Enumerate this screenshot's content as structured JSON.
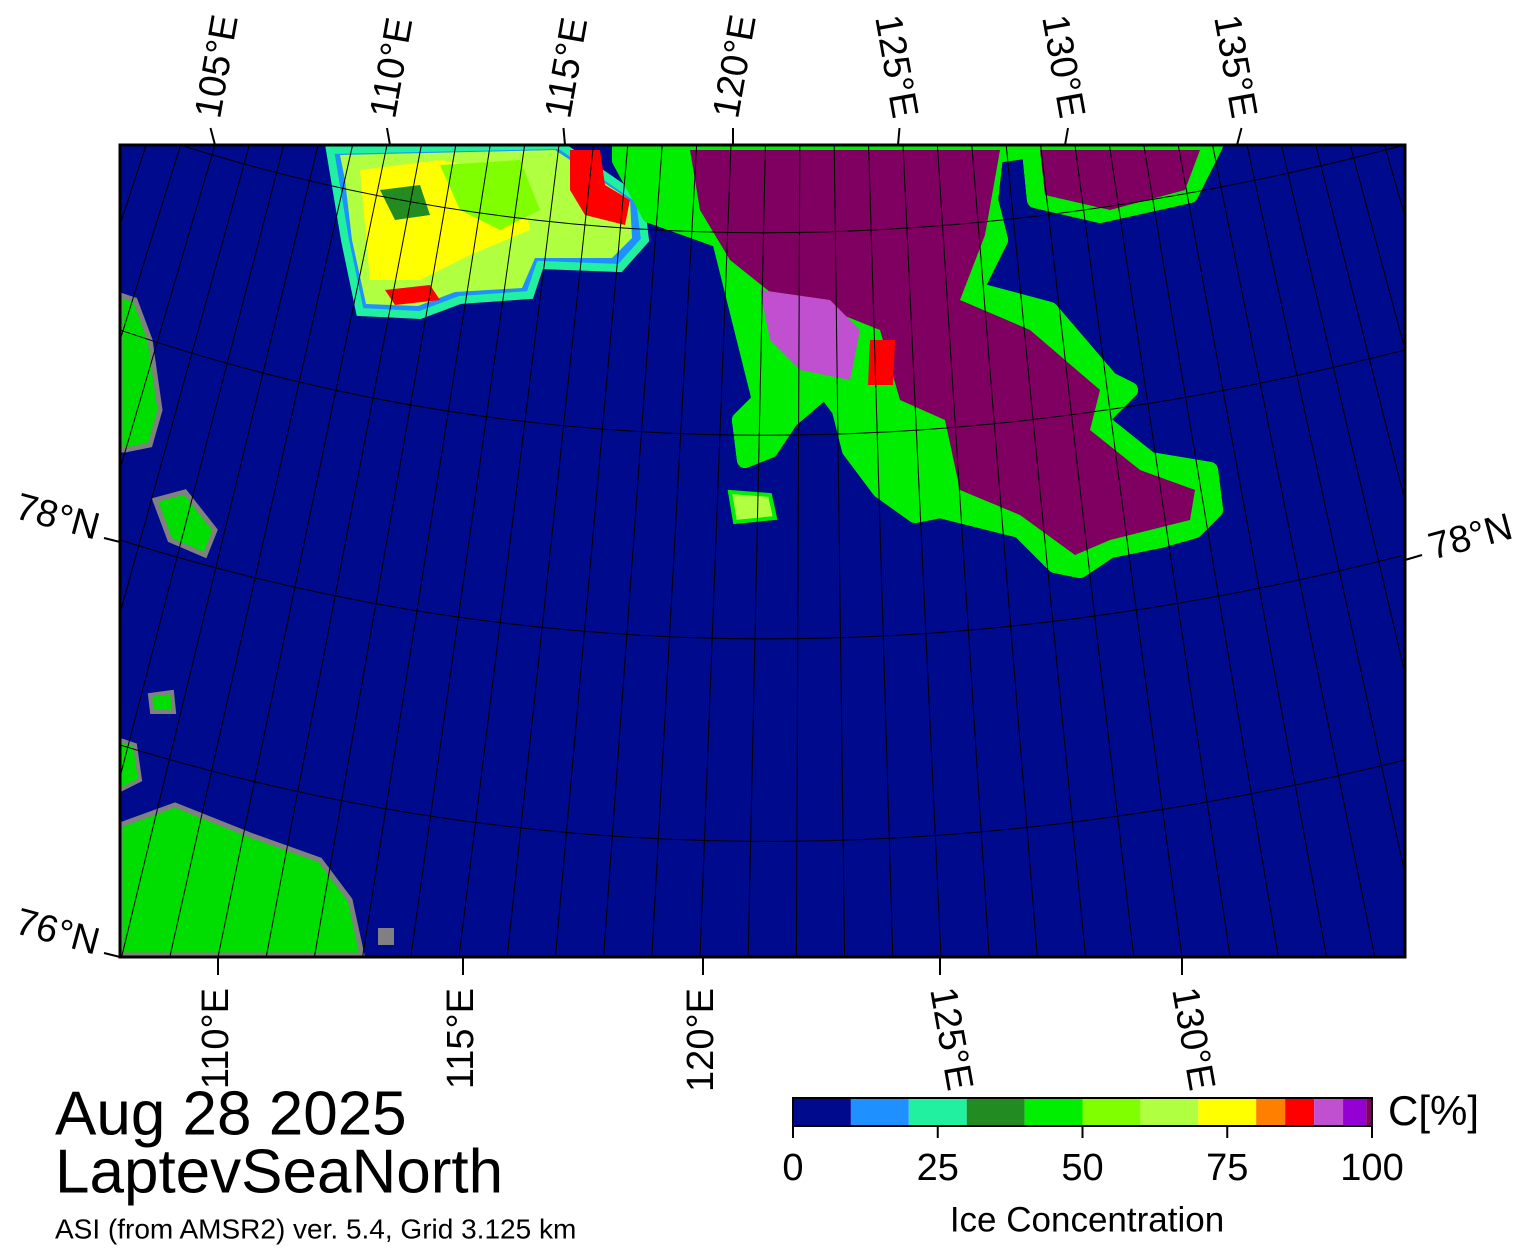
{
  "map": {
    "top_labels": [
      "105°E",
      "110°E",
      "115°E",
      "120°E",
      "125°E",
      "130°E",
      "135°E"
    ],
    "bottom_labels": [
      "110°E",
      "115°E",
      "120°E",
      "125°E",
      "130°E"
    ],
    "left_labels": [
      "78°N",
      "76°N"
    ],
    "right_labels": [
      "78°N"
    ]
  },
  "date": "Aug 28 2025",
  "region": "LaptevSeaNorth",
  "product": "ASI (from AMSR2) ver. 5.4,  Grid 3.125 km",
  "colorbar": {
    "bounds": [
      0,
      10,
      20,
      30,
      40,
      50,
      60,
      70,
      80,
      85,
      90,
      95,
      99,
      100
    ],
    "colors": [
      "#000a8c",
      "#1e90ff",
      "#20f0a0",
      "#228b22",
      "#00ee00",
      "#7fff00",
      "#b0ff40",
      "#ffff00",
      "#ff8000",
      "#ff0000",
      "#c050d0",
      "#9400d3",
      "#7f0060"
    ],
    "lim": [
      0,
      100
    ],
    "ticks": [
      0,
      25,
      50,
      75,
      100
    ],
    "unit": "C[%]",
    "label": "Ice Concentration"
  }
}
